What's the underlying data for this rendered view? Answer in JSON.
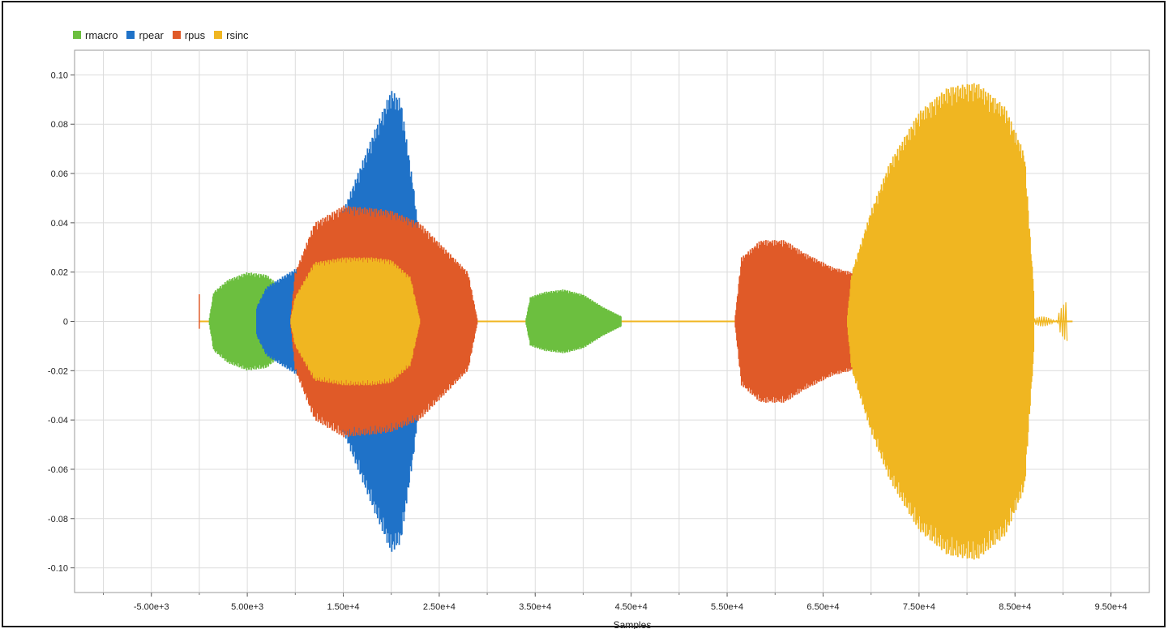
{
  "chart_data": {
    "type": "line",
    "title": "",
    "xlabel": "Samples",
    "ylabel": "",
    "xlim": [
      -13000,
      99000
    ],
    "ylim": [
      -0.11,
      0.11
    ],
    "x_ticks": [
      -5000,
      5000,
      15000,
      25000,
      35000,
      45000,
      55000,
      65000,
      75000,
      85000,
      95000
    ],
    "x_tick_labels": [
      "-5.00e+3",
      "5.00e+3",
      "1.50e+4",
      "2.50e+4",
      "3.50e+4",
      "4.50e+4",
      "5.50e+4",
      "6.50e+4",
      "7.50e+4",
      "8.50e+4",
      "9.50e+4"
    ],
    "y_ticks": [
      0.1,
      0.08,
      0.06,
      0.04,
      0.02,
      0,
      -0.02,
      -0.04,
      -0.06,
      -0.08,
      -0.1
    ],
    "y_tick_labels": [
      "0.10",
      "0.08",
      "0.06",
      "0.04",
      "0.02",
      "0",
      "-0.02",
      "-0.04",
      "-0.06",
      "-0.08",
      "-0.10"
    ],
    "grid": true,
    "legend_position": "top-left",
    "series": [
      {
        "name": "rmacro",
        "color": "#6cbf3f",
        "envelope": [
          {
            "x": 1000,
            "amp": 0.0
          },
          {
            "x": 1500,
            "amp": 0.012
          },
          {
            "x": 3000,
            "amp": 0.017
          },
          {
            "x": 5000,
            "amp": 0.02
          },
          {
            "x": 7000,
            "amp": 0.019
          },
          {
            "x": 8500,
            "amp": 0.014
          },
          {
            "x": 10000,
            "amp": 0.003
          },
          {
            "x": 34000,
            "amp": 0.0
          },
          {
            "x": 34500,
            "amp": 0.01
          },
          {
            "x": 36000,
            "amp": 0.012
          },
          {
            "x": 38000,
            "amp": 0.013
          },
          {
            "x": 40000,
            "amp": 0.011
          },
          {
            "x": 42000,
            "amp": 0.006
          },
          {
            "x": 44000,
            "amp": 0.002
          }
        ]
      },
      {
        "name": "rpear",
        "color": "#1f72c8",
        "envelope": [
          {
            "x": 6000,
            "amp": 0.006
          },
          {
            "x": 7000,
            "amp": 0.014
          },
          {
            "x": 9000,
            "amp": 0.019
          },
          {
            "x": 12000,
            "amp": 0.026
          },
          {
            "x": 15000,
            "amp": 0.045
          },
          {
            "x": 18000,
            "amp": 0.075
          },
          {
            "x": 20000,
            "amp": 0.094
          },
          {
            "x": 21000,
            "amp": 0.09
          },
          {
            "x": 22500,
            "amp": 0.05
          },
          {
            "x": 23500,
            "amp": 0.0
          }
        ]
      },
      {
        "name": "rpus",
        "color": "#e05a28",
        "envelope": [
          {
            "x": 9500,
            "amp": 0.0
          },
          {
            "x": 10000,
            "amp": 0.02
          },
          {
            "x": 12000,
            "amp": 0.04
          },
          {
            "x": 15000,
            "amp": 0.047
          },
          {
            "x": 18000,
            "amp": 0.046
          },
          {
            "x": 20000,
            "amp": 0.045
          },
          {
            "x": 23000,
            "amp": 0.04
          },
          {
            "x": 26000,
            "amp": 0.028
          },
          {
            "x": 28000,
            "amp": 0.02
          },
          {
            "x": 29000,
            "amp": 0.0
          },
          {
            "x": 55800,
            "amp": 0.0
          },
          {
            "x": 56500,
            "amp": 0.026
          },
          {
            "x": 58500,
            "amp": 0.033
          },
          {
            "x": 61000,
            "amp": 0.033
          },
          {
            "x": 63000,
            "amp": 0.028
          },
          {
            "x": 66000,
            "amp": 0.022
          },
          {
            "x": 68000,
            "amp": 0.02
          }
        ]
      },
      {
        "name": "rsinc",
        "color": "#f0b621",
        "envelope": [
          {
            "x": 9500,
            "amp": 0.0
          },
          {
            "x": 10000,
            "amp": 0.01
          },
          {
            "x": 12000,
            "amp": 0.024
          },
          {
            "x": 15000,
            "amp": 0.026
          },
          {
            "x": 18000,
            "amp": 0.026
          },
          {
            "x": 20000,
            "amp": 0.025
          },
          {
            "x": 22000,
            "amp": 0.018
          },
          {
            "x": 23000,
            "amp": 0.0
          },
          {
            "x": 67500,
            "amp": 0.0
          },
          {
            "x": 68000,
            "amp": 0.02
          },
          {
            "x": 70000,
            "amp": 0.045
          },
          {
            "x": 72000,
            "amp": 0.065
          },
          {
            "x": 75000,
            "amp": 0.085
          },
          {
            "x": 78000,
            "amp": 0.095
          },
          {
            "x": 81000,
            "amp": 0.097
          },
          {
            "x": 84000,
            "amp": 0.087
          },
          {
            "x": 86000,
            "amp": 0.068
          },
          {
            "x": 87000,
            "amp": 0.01
          }
        ]
      }
    ]
  }
}
